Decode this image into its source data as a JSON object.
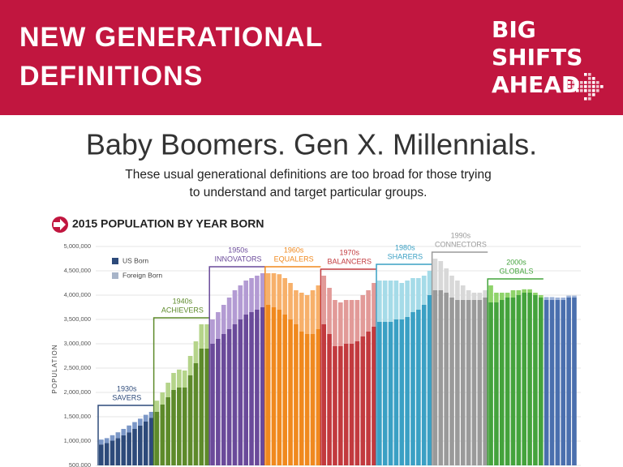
{
  "header": {
    "title_lines": [
      "NEW GENERATIONAL",
      "DEFINITIONS"
    ],
    "logo_lines": [
      "BIG",
      "SHIFTS",
      "AHEAD"
    ]
  },
  "headline": "Baby Boomers. Gen X. Millennials.",
  "subtitle_lines": [
    "These usual generational definitions are too broad for those trying",
    "to understand and target particular groups."
  ],
  "chart_data": {
    "type": "stacked-bar",
    "title": "2015 POPULATION BY YEAR BORN",
    "y_label": "POPULATION",
    "ylim": [
      500000,
      5000000
    ],
    "yticks": [
      {
        "value": 500000,
        "label": "500,000"
      },
      {
        "value": 1000000,
        "label": "1,000,000"
      },
      {
        "value": 1500000,
        "label": "1,500,000"
      },
      {
        "value": 2000000,
        "label": "2,000,000"
      },
      {
        "value": 2500000,
        "label": "2,500,000"
      },
      {
        "value": 3000000,
        "label": "3,000,000"
      },
      {
        "value": 3500000,
        "label": "3,500,000"
      },
      {
        "value": 4000000,
        "label": "4,000,000"
      },
      {
        "value": 4500000,
        "label": "4,500,000"
      },
      {
        "value": 5000000,
        "label": "5,000,000"
      }
    ],
    "grid": true,
    "legend": [
      {
        "name": "US Born",
        "color": "#2d4a7a"
      },
      {
        "name": "Foreign Born",
        "color": "#a7b4c8"
      }
    ],
    "groups": [
      {
        "decade": "1930s",
        "name": "SAVERS",
        "color": "#2d4a7a",
        "light": "#7b97c7",
        "us_born": [
          930000,
          960000,
          1010000,
          1060000,
          1120000,
          1180000,
          1250000,
          1320000,
          1400000,
          1480000
        ],
        "foreign_born": [
          100000,
          100000,
          110000,
          120000,
          130000,
          140000,
          140000,
          140000,
          140000,
          120000
        ]
      },
      {
        "decade": "1940s",
        "name": "ACHIEVERS",
        "color": "#5d8a2a",
        "light": "#b5d48a",
        "us_born": [
          1600000,
          1750000,
          1900000,
          2050000,
          2100000,
          2100000,
          2350000,
          2600000,
          2900000,
          2900000
        ],
        "foreign_born": [
          230000,
          250000,
          300000,
          350000,
          370000,
          350000,
          400000,
          450000,
          500000,
          500000
        ]
      },
      {
        "decade": "1950s",
        "name": "INNOVATORS",
        "color": "#6a4a9a",
        "light": "#b39bd3",
        "us_born": [
          3000000,
          3100000,
          3200000,
          3300000,
          3400000,
          3500000,
          3600000,
          3650000,
          3700000,
          3750000
        ],
        "foreign_born": [
          500000,
          550000,
          600000,
          650000,
          700000,
          700000,
          700000,
          700000,
          700000,
          700000
        ]
      },
      {
        "decade": "1960s",
        "name": "EQUALERS",
        "color": "#f0891e",
        "light": "#f7b06a",
        "us_born": [
          3800000,
          3750000,
          3700000,
          3600000,
          3500000,
          3400000,
          3250000,
          3200000,
          3200000,
          3300000
        ],
        "foreign_born": [
          650000,
          700000,
          730000,
          750000,
          750000,
          700000,
          800000,
          800000,
          900000,
          900000
        ]
      },
      {
        "decade": "1970s",
        "name": "BALANCERS",
        "color": "#c23a3e",
        "light": "#e29a98",
        "us_born": [
          3400000,
          3200000,
          2950000,
          2950000,
          3000000,
          3000000,
          3050000,
          3150000,
          3250000,
          3350000
        ],
        "foreign_born": [
          1000000,
          950000,
          950000,
          900000,
          900000,
          900000,
          850000,
          850000,
          850000,
          900000
        ]
      },
      {
        "decade": "1980s",
        "name": "SHARERS",
        "color": "#3aa0c4",
        "light": "#a5dbe8",
        "us_born": [
          3450000,
          3450000,
          3450000,
          3500000,
          3500000,
          3550000,
          3650000,
          3700000,
          3800000,
          4000000
        ],
        "foreign_born": [
          850000,
          850000,
          850000,
          800000,
          750000,
          750000,
          700000,
          650000,
          600000,
          500000
        ]
      },
      {
        "decade": "1990s",
        "name": "CONNECTORS",
        "color": "#9a9a9a",
        "light": "#d8d8d8",
        "us_born": [
          4100000,
          4100000,
          4050000,
          3950000,
          3900000,
          3900000,
          3900000,
          3900000,
          3900000,
          3950000
        ],
        "foreign_born": [
          650000,
          600000,
          500000,
          450000,
          400000,
          300000,
          200000,
          150000,
          150000,
          150000
        ]
      },
      {
        "decade": "2000s",
        "name": "GLOBALS",
        "color": "#44a33c",
        "light": "#8fd36a",
        "us_born": [
          3850000,
          3850000,
          3900000,
          3950000,
          3950000,
          4000000,
          4050000,
          4050000,
          4000000,
          3950000
        ],
        "foreign_born": [
          350000,
          200000,
          150000,
          100000,
          150000,
          100000,
          70000,
          70000,
          50000,
          50000
        ]
      },
      {
        "color": "#4a6fae",
        "light": "#9db3d9",
        "us_born": [
          3900000,
          3900000,
          3900000,
          3900000,
          3950000,
          3950000
        ],
        "foreign_born": [
          60000,
          60000,
          50000,
          50000,
          40000,
          40000
        ]
      }
    ]
  }
}
